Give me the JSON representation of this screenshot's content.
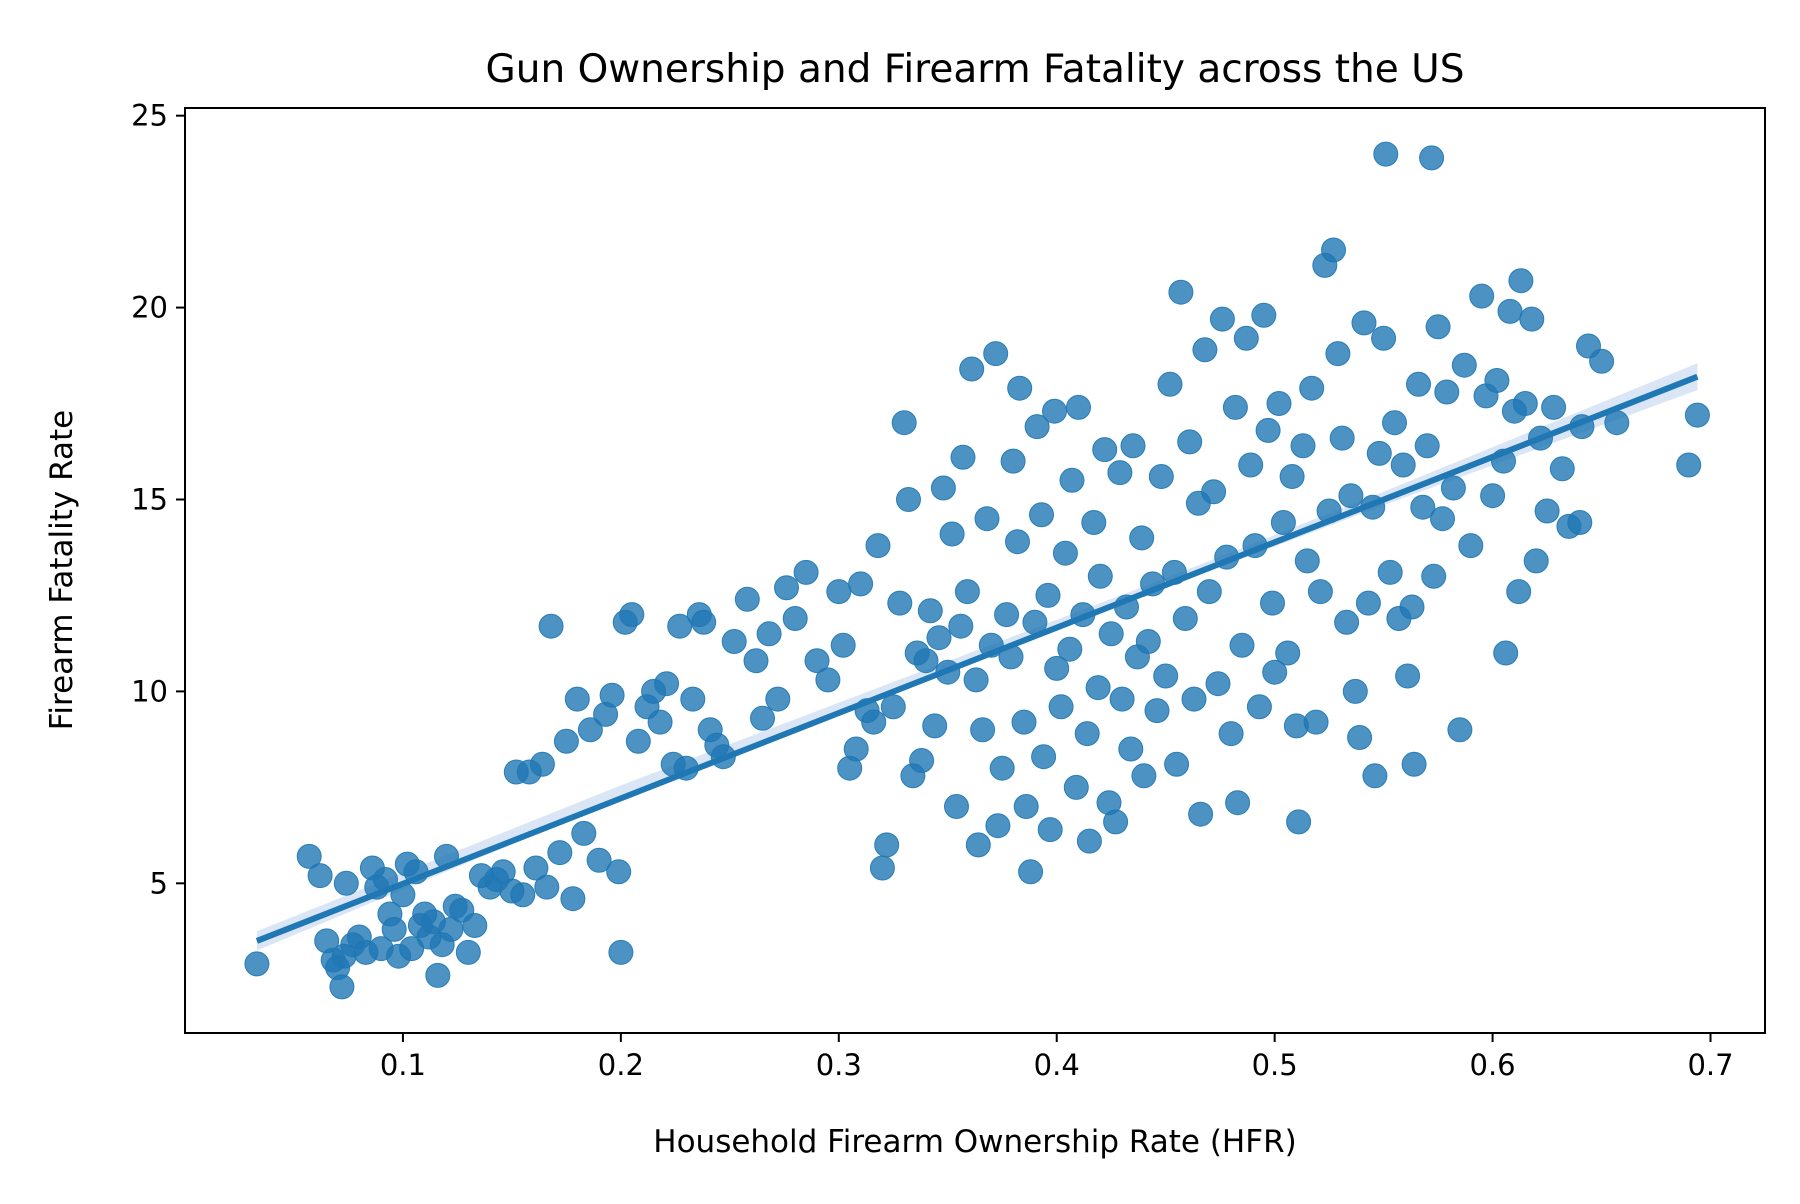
{
  "chart_data": {
    "type": "scatter",
    "title": "Gun Ownership and Firearm Fatality across the US",
    "xlabel": "Household Firearm Ownership Rate (HFR)",
    "ylabel": "Firearm Fatality Rate",
    "xlim": [
      0.0,
      0.725
    ],
    "ylim": [
      1.1,
      25.2
    ],
    "x_ticks": [
      0.1,
      0.2,
      0.3,
      0.4,
      0.5,
      0.6,
      0.7
    ],
    "x_tick_labels": [
      "0.1",
      "0.2",
      "0.3",
      "0.4",
      "0.5",
      "0.6",
      "0.7"
    ],
    "y_ticks": [
      5,
      10,
      15,
      20,
      25
    ],
    "y_tick_labels": [
      "5",
      "10",
      "15",
      "20",
      "25"
    ],
    "grid": false,
    "legend": "none",
    "colors": {
      "points": "#1f77b4",
      "regression_line": "#1f77b4",
      "confidence_band": "#aec7e8"
    },
    "regression": {
      "x": [
        0.033,
        0.694
      ],
      "y": [
        3.5,
        18.2
      ]
    },
    "confidence_band": {
      "x": [
        0.033,
        0.2,
        0.36,
        0.45,
        0.55,
        0.694
      ],
      "lower": [
        3.25,
        7.2,
        10.75,
        12.7,
        14.85,
        17.85
      ],
      "upper": [
        3.75,
        7.55,
        11.0,
        12.95,
        15.2,
        18.55
      ]
    },
    "series": [
      {
        "points": [
          [
            0.033,
            2.9
          ],
          [
            0.057,
            5.7
          ],
          [
            0.062,
            5.2
          ],
          [
            0.065,
            3.5
          ],
          [
            0.068,
            3.0
          ],
          [
            0.07,
            2.8
          ],
          [
            0.072,
            2.3
          ],
          [
            0.073,
            3.1
          ],
          [
            0.074,
            5.0
          ],
          [
            0.077,
            3.4
          ],
          [
            0.08,
            3.6
          ],
          [
            0.083,
            3.2
          ],
          [
            0.086,
            5.4
          ],
          [
            0.088,
            4.9
          ],
          [
            0.09,
            3.3
          ],
          [
            0.092,
            5.1
          ],
          [
            0.094,
            4.2
          ],
          [
            0.096,
            3.8
          ],
          [
            0.098,
            3.1
          ],
          [
            0.1,
            4.7
          ],
          [
            0.102,
            5.5
          ],
          [
            0.104,
            3.3
          ],
          [
            0.106,
            5.3
          ],
          [
            0.108,
            3.9
          ],
          [
            0.11,
            4.2
          ],
          [
            0.112,
            3.6
          ],
          [
            0.114,
            4.0
          ],
          [
            0.116,
            2.6
          ],
          [
            0.118,
            3.4
          ],
          [
            0.12,
            5.7
          ],
          [
            0.122,
            3.8
          ],
          [
            0.124,
            4.4
          ],
          [
            0.127,
            4.3
          ],
          [
            0.13,
            3.2
          ],
          [
            0.133,
            3.9
          ],
          [
            0.136,
            5.2
          ],
          [
            0.14,
            4.9
          ],
          [
            0.143,
            5.1
          ],
          [
            0.146,
            5.3
          ],
          [
            0.15,
            4.8
          ],
          [
            0.152,
            7.9
          ],
          [
            0.155,
            4.7
          ],
          [
            0.158,
            7.9
          ],
          [
            0.161,
            5.4
          ],
          [
            0.164,
            8.1
          ],
          [
            0.166,
            4.9
          ],
          [
            0.168,
            11.7
          ],
          [
            0.172,
            5.8
          ],
          [
            0.175,
            8.7
          ],
          [
            0.178,
            4.6
          ],
          [
            0.18,
            9.8
          ],
          [
            0.183,
            6.3
          ],
          [
            0.186,
            9.0
          ],
          [
            0.19,
            5.6
          ],
          [
            0.193,
            9.4
          ],
          [
            0.196,
            9.9
          ],
          [
            0.199,
            5.3
          ],
          [
            0.2,
            3.2
          ],
          [
            0.202,
            11.8
          ],
          [
            0.205,
            12.0
          ],
          [
            0.208,
            8.7
          ],
          [
            0.212,
            9.6
          ],
          [
            0.215,
            10.0
          ],
          [
            0.218,
            9.2
          ],
          [
            0.221,
            10.2
          ],
          [
            0.224,
            8.1
          ],
          [
            0.227,
            11.7
          ],
          [
            0.23,
            8.0
          ],
          [
            0.233,
            9.8
          ],
          [
            0.236,
            12.0
          ],
          [
            0.238,
            11.8
          ],
          [
            0.241,
            9.0
          ],
          [
            0.244,
            8.6
          ],
          [
            0.247,
            8.3
          ],
          [
            0.252,
            11.3
          ],
          [
            0.258,
            12.4
          ],
          [
            0.262,
            10.8
          ],
          [
            0.265,
            9.3
          ],
          [
            0.268,
            11.5
          ],
          [
            0.272,
            9.8
          ],
          [
            0.276,
            12.7
          ],
          [
            0.28,
            11.9
          ],
          [
            0.285,
            13.1
          ],
          [
            0.29,
            10.8
          ],
          [
            0.295,
            10.3
          ],
          [
            0.3,
            12.6
          ],
          [
            0.302,
            11.2
          ],
          [
            0.305,
            8.0
          ],
          [
            0.308,
            8.5
          ],
          [
            0.31,
            12.8
          ],
          [
            0.313,
            9.5
          ],
          [
            0.316,
            9.2
          ],
          [
            0.318,
            13.8
          ],
          [
            0.32,
            5.4
          ],
          [
            0.322,
            6.0
          ],
          [
            0.325,
            9.6
          ],
          [
            0.328,
            12.3
          ],
          [
            0.33,
            17.0
          ],
          [
            0.332,
            15.0
          ],
          [
            0.334,
            7.8
          ],
          [
            0.336,
            11.0
          ],
          [
            0.338,
            8.2
          ],
          [
            0.34,
            10.8
          ],
          [
            0.342,
            12.1
          ],
          [
            0.344,
            9.1
          ],
          [
            0.346,
            11.4
          ],
          [
            0.348,
            15.3
          ],
          [
            0.35,
            10.5
          ],
          [
            0.352,
            14.1
          ],
          [
            0.354,
            7.0
          ],
          [
            0.356,
            11.7
          ],
          [
            0.357,
            16.1
          ],
          [
            0.359,
            12.6
          ],
          [
            0.361,
            18.4
          ],
          [
            0.363,
            10.3
          ],
          [
            0.364,
            6.0
          ],
          [
            0.366,
            9.0
          ],
          [
            0.368,
            14.5
          ],
          [
            0.37,
            11.2
          ],
          [
            0.372,
            18.8
          ],
          [
            0.373,
            6.5
          ],
          [
            0.375,
            8.0
          ],
          [
            0.377,
            12.0
          ],
          [
            0.379,
            10.9
          ],
          [
            0.38,
            16.0
          ],
          [
            0.382,
            13.9
          ],
          [
            0.383,
            17.9
          ],
          [
            0.385,
            9.2
          ],
          [
            0.386,
            7.0
          ],
          [
            0.388,
            5.3
          ],
          [
            0.39,
            11.8
          ],
          [
            0.391,
            16.9
          ],
          [
            0.393,
            14.6
          ],
          [
            0.394,
            8.3
          ],
          [
            0.396,
            12.5
          ],
          [
            0.397,
            6.4
          ],
          [
            0.399,
            17.3
          ],
          [
            0.4,
            10.6
          ],
          [
            0.402,
            9.6
          ],
          [
            0.404,
            13.6
          ],
          [
            0.406,
            11.1
          ],
          [
            0.407,
            15.5
          ],
          [
            0.409,
            7.5
          ],
          [
            0.41,
            17.4
          ],
          [
            0.412,
            12.0
          ],
          [
            0.414,
            8.9
          ],
          [
            0.415,
            6.1
          ],
          [
            0.417,
            14.4
          ],
          [
            0.419,
            10.1
          ],
          [
            0.42,
            13.0
          ],
          [
            0.422,
            16.3
          ],
          [
            0.424,
            7.1
          ],
          [
            0.425,
            11.5
          ],
          [
            0.427,
            6.6
          ],
          [
            0.429,
            15.7
          ],
          [
            0.43,
            9.8
          ],
          [
            0.432,
            12.2
          ],
          [
            0.434,
            8.5
          ],
          [
            0.435,
            16.4
          ],
          [
            0.437,
            10.9
          ],
          [
            0.439,
            14.0
          ],
          [
            0.44,
            7.8
          ],
          [
            0.442,
            11.3
          ],
          [
            0.444,
            12.8
          ],
          [
            0.446,
            9.5
          ],
          [
            0.448,
            15.6
          ],
          [
            0.45,
            10.4
          ],
          [
            0.452,
            18.0
          ],
          [
            0.454,
            13.1
          ],
          [
            0.455,
            8.1
          ],
          [
            0.457,
            20.4
          ],
          [
            0.459,
            11.9
          ],
          [
            0.461,
            16.5
          ],
          [
            0.463,
            9.8
          ],
          [
            0.465,
            14.9
          ],
          [
            0.466,
            6.8
          ],
          [
            0.468,
            18.9
          ],
          [
            0.47,
            12.6
          ],
          [
            0.472,
            15.2
          ],
          [
            0.474,
            10.2
          ],
          [
            0.476,
            19.7
          ],
          [
            0.478,
            13.5
          ],
          [
            0.48,
            8.9
          ],
          [
            0.482,
            17.4
          ],
          [
            0.483,
            7.1
          ],
          [
            0.485,
            11.2
          ],
          [
            0.487,
            19.2
          ],
          [
            0.489,
            15.9
          ],
          [
            0.491,
            13.8
          ],
          [
            0.493,
            9.6
          ],
          [
            0.495,
            19.8
          ],
          [
            0.497,
            16.8
          ],
          [
            0.499,
            12.3
          ],
          [
            0.5,
            10.5
          ],
          [
            0.502,
            17.5
          ],
          [
            0.504,
            14.4
          ],
          [
            0.506,
            11.0
          ],
          [
            0.508,
            15.6
          ],
          [
            0.51,
            9.1
          ],
          [
            0.511,
            6.6
          ],
          [
            0.513,
            16.4
          ],
          [
            0.515,
            13.4
          ],
          [
            0.517,
            17.9
          ],
          [
            0.519,
            9.2
          ],
          [
            0.521,
            12.6
          ],
          [
            0.523,
            21.1
          ],
          [
            0.525,
            14.7
          ],
          [
            0.527,
            21.5
          ],
          [
            0.529,
            18.8
          ],
          [
            0.531,
            16.6
          ],
          [
            0.533,
            11.8
          ],
          [
            0.535,
            15.1
          ],
          [
            0.537,
            10.0
          ],
          [
            0.539,
            8.8
          ],
          [
            0.541,
            19.6
          ],
          [
            0.543,
            12.3
          ],
          [
            0.545,
            14.8
          ],
          [
            0.546,
            7.8
          ],
          [
            0.548,
            16.2
          ],
          [
            0.55,
            19.2
          ],
          [
            0.551,
            24.0
          ],
          [
            0.553,
            13.1
          ],
          [
            0.555,
            17.0
          ],
          [
            0.557,
            11.9
          ],
          [
            0.559,
            15.9
          ],
          [
            0.561,
            10.4
          ],
          [
            0.563,
            12.2
          ],
          [
            0.564,
            8.1
          ],
          [
            0.566,
            18.0
          ],
          [
            0.568,
            14.8
          ],
          [
            0.57,
            16.4
          ],
          [
            0.572,
            23.9
          ],
          [
            0.573,
            13.0
          ],
          [
            0.575,
            19.5
          ],
          [
            0.577,
            14.5
          ],
          [
            0.579,
            17.8
          ],
          [
            0.582,
            15.3
          ],
          [
            0.585,
            9.0
          ],
          [
            0.587,
            18.5
          ],
          [
            0.59,
            13.8
          ],
          [
            0.595,
            20.3
          ],
          [
            0.597,
            17.7
          ],
          [
            0.6,
            15.1
          ],
          [
            0.602,
            18.1
          ],
          [
            0.605,
            16.0
          ],
          [
            0.606,
            11.0
          ],
          [
            0.608,
            19.9
          ],
          [
            0.61,
            17.3
          ],
          [
            0.612,
            12.6
          ],
          [
            0.613,
            20.7
          ],
          [
            0.615,
            17.5
          ],
          [
            0.618,
            19.7
          ],
          [
            0.62,
            13.4
          ],
          [
            0.622,
            16.6
          ],
          [
            0.625,
            14.7
          ],
          [
            0.628,
            17.4
          ],
          [
            0.632,
            15.8
          ],
          [
            0.635,
            14.3
          ],
          [
            0.64,
            14.4
          ],
          [
            0.641,
            16.9
          ],
          [
            0.644,
            19.0
          ],
          [
            0.65,
            18.6
          ],
          [
            0.657,
            17.0
          ],
          [
            0.69,
            15.9
          ],
          [
            0.694,
            17.2
          ]
        ]
      }
    ]
  }
}
